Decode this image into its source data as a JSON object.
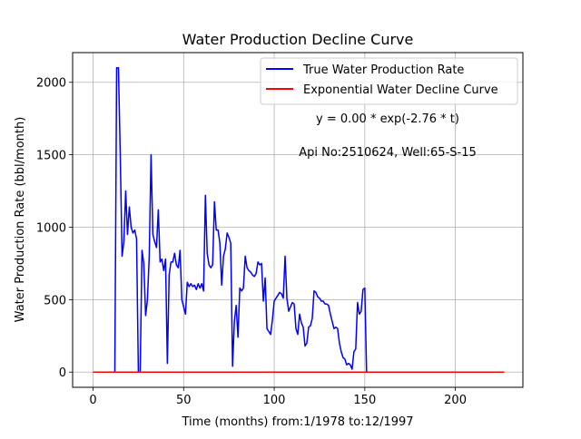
{
  "chart_data": {
    "type": "line",
    "title": "Water Production Decline Curve",
    "xlabel": "Time (months) from:1/1978 to:12/1997",
    "ylabel": "Water Production Rate (bbl/month)",
    "xlim": [
      -11.3,
      237.3
    ],
    "ylim": [
      -105,
      2205
    ],
    "xticks": [
      0,
      50,
      100,
      150,
      200
    ],
    "yticks": [
      0,
      500,
      1000,
      1500,
      2000
    ],
    "grid": true,
    "legend_position": "top-right",
    "annotations": [
      "y = 0.00 * exp(-2.76 * t)",
      "Api No:2510624, Well:65-S-15"
    ],
    "series": [
      {
        "name": "True Water Production Rate",
        "color": "#0000ff",
        "points": [
          [
            0,
            0
          ],
          [
            11,
            0
          ],
          [
            12,
            0
          ],
          [
            13,
            2100
          ],
          [
            14,
            2100
          ],
          [
            15,
            1500
          ],
          [
            16,
            800
          ],
          [
            17,
            900
          ],
          [
            18,
            1250
          ],
          [
            19,
            950
          ],
          [
            20,
            1140
          ],
          [
            21,
            1000
          ],
          [
            22,
            960
          ],
          [
            23,
            980
          ],
          [
            24,
            920
          ],
          [
            25,
            0
          ],
          [
            26,
            0
          ],
          [
            27,
            840
          ],
          [
            28,
            750
          ],
          [
            29,
            390
          ],
          [
            30,
            500
          ],
          [
            31,
            800
          ],
          [
            32,
            1500
          ],
          [
            33,
            950
          ],
          [
            34,
            900
          ],
          [
            35,
            860
          ],
          [
            36,
            1120
          ],
          [
            37,
            760
          ],
          [
            38,
            780
          ],
          [
            39,
            700
          ],
          [
            40,
            780
          ],
          [
            41,
            60
          ],
          [
            42,
            670
          ],
          [
            43,
            760
          ],
          [
            44,
            760
          ],
          [
            45,
            820
          ],
          [
            46,
            740
          ],
          [
            47,
            720
          ],
          [
            48,
            840
          ],
          [
            49,
            500
          ],
          [
            50,
            450
          ],
          [
            51,
            400
          ],
          [
            52,
            620
          ],
          [
            53,
            590
          ],
          [
            54,
            610
          ],
          [
            55,
            590
          ],
          [
            56,
            600
          ],
          [
            57,
            570
          ],
          [
            58,
            610
          ],
          [
            59,
            580
          ],
          [
            60,
            610
          ],
          [
            61,
            560
          ],
          [
            62,
            1220
          ],
          [
            63,
            820
          ],
          [
            64,
            740
          ],
          [
            65,
            720
          ],
          [
            66,
            740
          ],
          [
            67,
            1175
          ],
          [
            68,
            980
          ],
          [
            69,
            980
          ],
          [
            70,
            890
          ],
          [
            71,
            600
          ],
          [
            72,
            800
          ],
          [
            73,
            850
          ],
          [
            74,
            960
          ],
          [
            75,
            930
          ],
          [
            76,
            890
          ],
          [
            77,
            40
          ],
          [
            78,
            350
          ],
          [
            79,
            460
          ],
          [
            80,
            240
          ],
          [
            81,
            580
          ],
          [
            82,
            560
          ],
          [
            83,
            580
          ],
          [
            84,
            800
          ],
          [
            85,
            720
          ],
          [
            86,
            700
          ],
          [
            87,
            690
          ],
          [
            88,
            670
          ],
          [
            89,
            660
          ],
          [
            90,
            680
          ],
          [
            91,
            760
          ],
          [
            92,
            740
          ],
          [
            93,
            750
          ],
          [
            94,
            490
          ],
          [
            95,
            650
          ],
          [
            96,
            300
          ],
          [
            97,
            280
          ],
          [
            98,
            260
          ],
          [
            99,
            360
          ],
          [
            100,
            490
          ],
          [
            101,
            510
          ],
          [
            102,
            530
          ],
          [
            103,
            550
          ],
          [
            104,
            540
          ],
          [
            105,
            510
          ],
          [
            106,
            800
          ],
          [
            107,
            510
          ],
          [
            108,
            420
          ],
          [
            109,
            450
          ],
          [
            110,
            480
          ],
          [
            111,
            470
          ],
          [
            112,
            300
          ],
          [
            113,
            260
          ],
          [
            114,
            400
          ],
          [
            115,
            340
          ],
          [
            116,
            310
          ],
          [
            117,
            180
          ],
          [
            118,
            200
          ],
          [
            119,
            310
          ],
          [
            120,
            320
          ],
          [
            121,
            370
          ],
          [
            122,
            560
          ],
          [
            123,
            550
          ],
          [
            124,
            520
          ],
          [
            125,
            510
          ],
          [
            126,
            490
          ],
          [
            127,
            490
          ],
          [
            128,
            470
          ],
          [
            129,
            470
          ],
          [
            130,
            460
          ],
          [
            131,
            400
          ],
          [
            132,
            350
          ],
          [
            133,
            300
          ],
          [
            134,
            310
          ],
          [
            135,
            300
          ],
          [
            136,
            200
          ],
          [
            137,
            140
          ],
          [
            138,
            100
          ],
          [
            139,
            90
          ],
          [
            140,
            50
          ],
          [
            141,
            60
          ],
          [
            142,
            50
          ],
          [
            143,
            20
          ],
          [
            144,
            140
          ],
          [
            145,
            160
          ],
          [
            146,
            480
          ],
          [
            147,
            400
          ],
          [
            148,
            420
          ],
          [
            149,
            570
          ],
          [
            150,
            580
          ],
          [
            151,
            0
          ],
          [
            152,
            0
          ],
          [
            227,
            0
          ]
        ]
      },
      {
        "name": "Exponential Water Decline Curve",
        "color": "#ff0000",
        "points": [
          [
            0,
            0
          ],
          [
            227,
            0
          ]
        ]
      }
    ]
  }
}
